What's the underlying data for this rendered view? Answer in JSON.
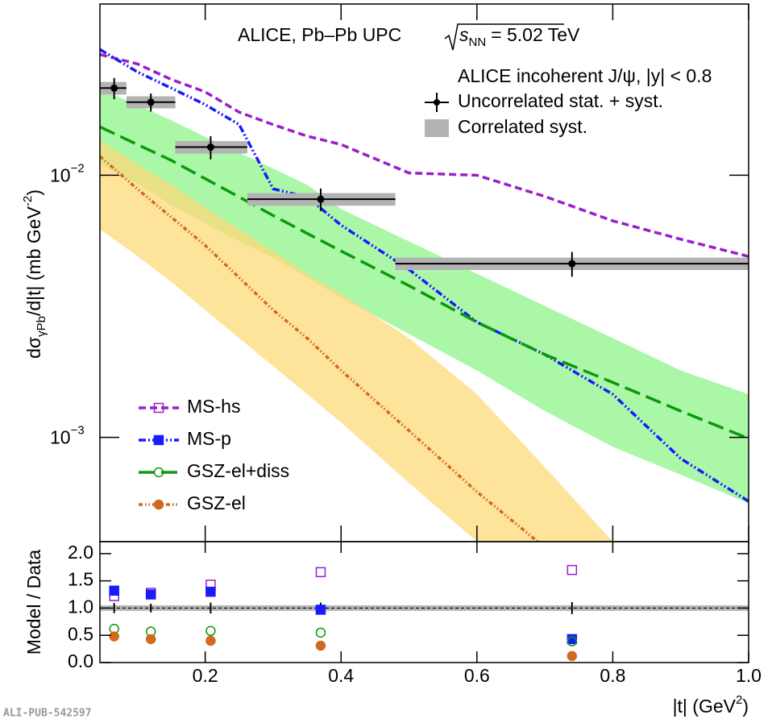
{
  "chart_data": [
    {
      "type": "line",
      "log_y": true,
      "title": "ALICE, Pb–Pb UPC",
      "energy": {
        "var": "s",
        "sub": "NN",
        "text": "= 5.02 TeV"
      },
      "legend_title": "ALICE incoherent J/ψ, |y| < 0.8",
      "y_label": {
        "main": "dσ",
        "sub": "γPb",
        "mid": "/d|t| (mb GeV",
        "sup": "-2",
        "end": ")"
      },
      "xlim": [
        0.045,
        1.0
      ],
      "ylim": [
        0.0004,
        0.045
      ],
      "xticks": [
        0.2,
        0.4,
        0.6,
        0.8,
        {
          "value": 1.0,
          "label": "1.0"
        }
      ],
      "yticks": [
        {
          "value": 0.001,
          "label": "10",
          "exponent": "−3"
        },
        {
          "value": 0.01,
          "label": "10",
          "exponent": "−2"
        }
      ],
      "x": [
        0.045,
        0.1,
        0.15,
        0.2,
        0.25,
        0.3,
        0.35,
        0.4,
        0.5,
        0.6,
        0.7,
        0.8,
        0.9,
        1.0
      ],
      "series": [
        {
          "name": "MS-hs",
          "color": "#9b1fc9",
          "dash": "9,5",
          "marker": "open-square",
          "values": [
            0.0289,
            0.0266,
            0.0232,
            0.0208,
            0.0174,
            0.0156,
            0.0141,
            0.0131,
            0.0102,
            0.01,
            0.0083,
            0.0067,
            0.0057,
            0.0049
          ]
        },
        {
          "name": "MS-p",
          "color": "#1a1aff",
          "dash": "9,3,2,3,2,3",
          "marker": "square",
          "values": [
            0.0302,
            0.0248,
            0.0215,
            0.0186,
            0.0156,
            0.00887,
            0.00826,
            0.00645,
            0.00437,
            0.00275,
            0.00207,
            0.00146,
            0.00083,
            0.00057
          ]
        },
        {
          "name": "GSZ-el+diss",
          "color": "#0c990c",
          "dash": "20,8",
          "marker": "open-circle",
          "band_color": "#7ef27a",
          "values": [
            0.0153,
            0.0131,
            0.0114,
            0.0097,
            0.00826,
            0.00702,
            0.006,
            0.00514,
            0.00379,
            0.00275,
            0.00207,
            0.00162,
            0.00126,
            0.00099
          ],
          "band_upper": [
            0.0212,
            0.0186,
            0.0162,
            0.014,
            0.0122,
            0.0106,
            0.0092,
            0.00743,
            0.00559,
            0.00421,
            0.00317,
            0.00239,
            0.0018,
            0.00146
          ],
          "band_lower": [
            0.011,
            0.0093,
            0.0077,
            0.00654,
            0.00559,
            0.00486,
            0.00407,
            0.00341,
            0.00248,
            0.0018,
            0.00126,
            0.00092,
            0.00072,
            0.00056
          ]
        },
        {
          "name": "GSZ-el",
          "color": "#d2691e",
          "dash": "5,3,1.5,3,1.5,3",
          "marker": "circle",
          "band_color": "#fdd97a",
          "values": [
            0.0118,
            0.00887,
            0.00692,
            0.0054,
            0.00407,
            0.00306,
            0.00239,
            0.0018,
            0.00106,
            0.00062,
            0.00038,
            null,
            null,
            null
          ],
          "band_upper": [
            0.0136,
            0.011,
            0.0092,
            0.00753,
            0.00622,
            0.00514,
            0.00421,
            0.00353,
            0.00239,
            0.00146,
            0.00077,
            0.0004,
            null,
            null
          ],
          "band_lower": [
            0.00622,
            0.00492,
            0.00392,
            0.00306,
            0.00239,
            0.00187,
            0.00146,
            0.00114,
            0.00067,
            0.0004,
            0.00024,
            0.00014,
            null,
            null
          ]
        }
      ],
      "points": {
        "name": "Uncorrelated stat. + syst.",
        "syst_name": "Correlated syst.",
        "x": [
          0.066,
          0.12,
          0.208,
          0.37,
          0.74
        ],
        "bin_low": [
          0.045,
          0.084,
          0.156,
          0.262,
          0.48
        ],
        "bin_high": [
          0.084,
          0.156,
          0.262,
          0.48,
          1.0
        ],
        "values": [
          0.0215,
          0.019,
          0.0128,
          0.0081,
          0.0046
        ],
        "errors": [
          0.002,
          0.0015,
          0.0013,
          0.0008,
          0.0005
        ],
        "syst": [
          0.0012,
          0.001,
          0.0007,
          0.00045,
          0.00025
        ]
      }
    },
    {
      "type": "scatter",
      "y_label": "Model / Data",
      "x_label": {
        "main": "|t| (GeV",
        "sup": "2",
        "end": ")"
      },
      "xlim": [
        0.045,
        1.0
      ],
      "ylim": [
        0,
        2.22
      ],
      "yticks": [
        {
          "value": 0,
          "label": "0.0"
        },
        0.5,
        {
          "value": 1,
          "label": "1.0"
        },
        1.5,
        {
          "value": 2,
          "label": "2.0"
        }
      ],
      "x": [
        0.066,
        0.12,
        0.208,
        0.37,
        0.74
      ],
      "reference": {
        "values": [
          1,
          1,
          1,
          1,
          1
        ],
        "errors": [
          0.093,
          0.079,
          0.1,
          0.099,
          0.11
        ],
        "band": 0.05
      },
      "series": [
        {
          "name": "MS-hs",
          "color": "#9b1fc9",
          "marker": "open-square",
          "values": [
            1.22,
            1.28,
            1.43,
            1.66,
            1.7
          ]
        },
        {
          "name": "MS-p",
          "color": "#1a1aff",
          "marker": "square",
          "values": [
            1.32,
            1.25,
            1.3,
            0.97,
            0.43
          ]
        },
        {
          "name": "GSZ-el+diss",
          "color": "#0c990c",
          "marker": "open-circle",
          "values": [
            0.62,
            0.57,
            0.58,
            0.55,
            0.39
          ]
        },
        {
          "name": "GSZ-el",
          "color": "#d2691e",
          "marker": "circle",
          "values": [
            0.48,
            0.43,
            0.4,
            0.31,
            0.12
          ]
        }
      ]
    }
  ],
  "footer": "ALI-PUB-542597"
}
